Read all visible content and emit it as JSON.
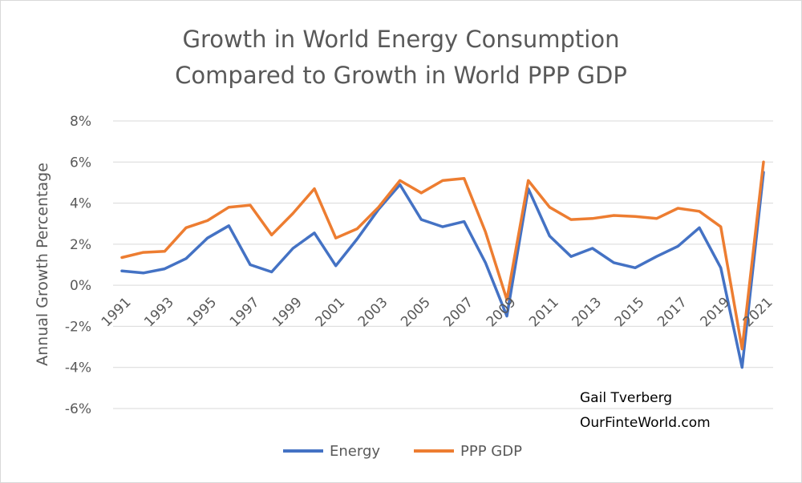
{
  "chart_data": {
    "type": "line",
    "title": [
      "Growth in World Energy Consumption",
      "Compared to Growth in World PPP GDP"
    ],
    "ylabel": "Annual Growth Percentage",
    "xlabel": "",
    "ylim": [
      -6,
      8
    ],
    "yticks": [
      -6,
      -4,
      -2,
      0,
      2,
      4,
      6,
      8
    ],
    "ytick_labels": [
      "-6%",
      "-4%",
      "-2%",
      "0%",
      "2%",
      "4%",
      "6%",
      "8%"
    ],
    "x": [
      1991,
      1992,
      1993,
      1994,
      1995,
      1996,
      1997,
      1998,
      1999,
      2000,
      2001,
      2002,
      2003,
      2004,
      2005,
      2006,
      2007,
      2008,
      2009,
      2010,
      2011,
      2012,
      2013,
      2014,
      2015,
      2016,
      2017,
      2018,
      2019,
      2020,
      2021
    ],
    "xtick_labels": [
      "1991",
      "1993",
      "1995",
      "1997",
      "1999",
      "2001",
      "2003",
      "2005",
      "2007",
      "2009",
      "2011",
      "2013",
      "2015",
      "2017",
      "2019",
      "2021"
    ],
    "grid": true,
    "legend_position": "bottom",
    "series": [
      {
        "name": "Energy",
        "color": "#4472c4",
        "values": [
          0.7,
          0.6,
          0.8,
          1.3,
          2.3,
          2.9,
          1.0,
          0.65,
          1.8,
          2.55,
          0.95,
          2.25,
          3.7,
          4.9,
          3.2,
          2.85,
          3.1,
          1.1,
          -1.5,
          4.7,
          2.4,
          1.4,
          1.8,
          1.1,
          0.85,
          1.4,
          1.9,
          2.8,
          0.85,
          -4.0,
          5.5
        ]
      },
      {
        "name": "PPP GDP",
        "color": "#ed7d31",
        "values": [
          1.35,
          1.6,
          1.65,
          2.8,
          3.15,
          3.8,
          3.9,
          2.45,
          3.5,
          4.7,
          2.3,
          2.75,
          3.8,
          5.1,
          4.5,
          5.1,
          5.2,
          2.6,
          -0.7,
          5.1,
          3.8,
          3.2,
          3.25,
          3.4,
          3.35,
          3.25,
          3.75,
          3.6,
          2.85,
          -3.1,
          6.0
        ]
      }
    ],
    "annotations": [
      "Gail Tverberg",
      "OurFinteWorld.com"
    ]
  }
}
